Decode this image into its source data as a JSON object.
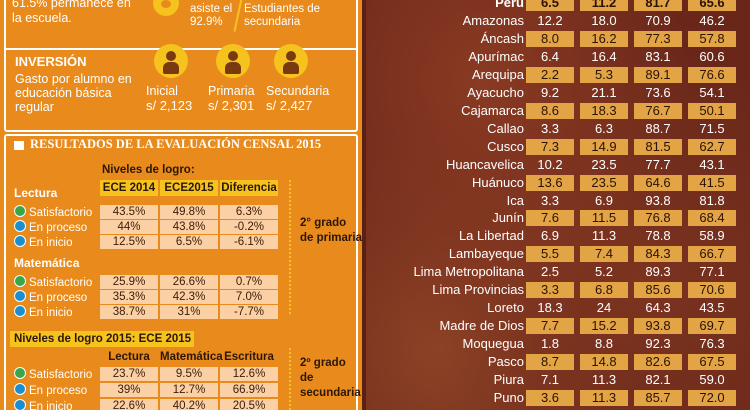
{
  "header": {
    "retention": "61.5% permanece en la escuela.",
    "attendance": "asiste el 92.9%",
    "attendance_group": "Estudiantes de secundaria"
  },
  "investment": {
    "title": "INVERSIÓN",
    "description": "Gasto por alumno en educación básica regular",
    "levels": [
      {
        "label": "Inicial",
        "amount": "s/ 2,123"
      },
      {
        "label": "Primaria",
        "amount": "s/ 2,301"
      },
      {
        "label": "Secundaria",
        "amount": "s/ 2,427"
      }
    ]
  },
  "census": {
    "title": "RESULTADOS DE LA EVALUACIÓN CENSAL 2015",
    "primary": {
      "caption": "Niveles de logro:",
      "columns": [
        "ECE 2014",
        "ECE2015",
        "Diferencia"
      ],
      "grade": "2° grado de primaria",
      "subjects": [
        {
          "name": "Lectura",
          "rows": [
            {
              "level": "Satisfactorio",
              "values": [
                "43.5%",
                "49.8%",
                "6.3%"
              ]
            },
            {
              "level": "En proceso",
              "values": [
                "44%",
                "43.8%",
                "-0.2%"
              ]
            },
            {
              "level": "En inicio",
              "values": [
                "12.5%",
                "6.5%",
                "-6.1%"
              ]
            }
          ]
        },
        {
          "name": "Matemática",
          "rows": [
            {
              "level": "Satisfactorio",
              "values": [
                "25.9%",
                "26.6%",
                "0.7%"
              ]
            },
            {
              "level": "En proceso",
              "values": [
                "35.3%",
                "42.3%",
                "7.0%"
              ]
            },
            {
              "level": "En inicio",
              "values": [
                "38.7%",
                "31%",
                "-7.7%"
              ]
            }
          ]
        }
      ]
    },
    "secondary": {
      "caption": "Niveles de logro 2015:  ECE 2015",
      "columns": [
        "Lectura",
        "Matemática",
        "Escritura"
      ],
      "grade": "2º grado de secundaria",
      "rows": [
        {
          "level": "Satisfactorio",
          "values": [
            "23.7%",
            "9.5%",
            "12.6%"
          ]
        },
        {
          "level": "En proceso",
          "values": [
            "39%",
            "12.7%",
            "66.9%"
          ]
        },
        {
          "level": "En inicio",
          "values": [
            "22.6%",
            "40.2%",
            "20.5%"
          ]
        }
      ]
    }
  },
  "regions": {
    "national": {
      "name": "Perú",
      "values": [
        "6.5",
        "11.2",
        "81.7",
        "65.6"
      ]
    },
    "rows": [
      {
        "name": "Amazonas",
        "values": [
          "12.2",
          "18.0",
          "70.9",
          "46.2"
        ]
      },
      {
        "name": "Áncash",
        "values": [
          "8.0",
          "16.2",
          "77.3",
          "57.8"
        ]
      },
      {
        "name": "Apurímac",
        "values": [
          "6.4",
          "16.4",
          "83.1",
          "60.6"
        ]
      },
      {
        "name": "Arequipa",
        "values": [
          "2.2",
          "5.3",
          "89.1",
          "76.6"
        ]
      },
      {
        "name": "Ayacucho",
        "values": [
          "9.2",
          "21.1",
          "73.6",
          "54.1"
        ]
      },
      {
        "name": "Cajamarca",
        "values": [
          "8.6",
          "18.3",
          "76.7",
          "50.1"
        ]
      },
      {
        "name": "Callao",
        "values": [
          "3.3",
          "6.3",
          "88.7",
          "71.5"
        ]
      },
      {
        "name": "Cusco",
        "values": [
          "7.3",
          "14.9",
          "81.5",
          "62.7"
        ]
      },
      {
        "name": "Huancavelica",
        "values": [
          "10.2",
          "23.5",
          "77.7",
          "43.1"
        ]
      },
      {
        "name": "Huánuco",
        "values": [
          "13.6",
          "23.5",
          "64.6",
          "41.5"
        ]
      },
      {
        "name": "Ica",
        "values": [
          "3.3",
          "6.9",
          "93.8",
          "81.8"
        ]
      },
      {
        "name": "Junín",
        "values": [
          "7.6",
          "11.5",
          "76.8",
          "68.4"
        ]
      },
      {
        "name": "La Libertad",
        "values": [
          "6.9",
          "11.3",
          "78.8",
          "58.9"
        ]
      },
      {
        "name": "Lambayeque",
        "values": [
          "5.5",
          "7.4",
          "84.3",
          "66.7"
        ]
      },
      {
        "name": "Lima Metropolitana",
        "values": [
          "2.5",
          "5.2",
          "89.3",
          "77.1"
        ]
      },
      {
        "name": "Lima Provincias",
        "values": [
          "3.3",
          "6.8",
          "85.6",
          "70.6"
        ]
      },
      {
        "name": "Loreto",
        "values": [
          "18.3",
          "24",
          "64.3",
          "43.5"
        ]
      },
      {
        "name": "Madre de Dios",
        "values": [
          "7.7",
          "15.2",
          "93.8",
          "69.7"
        ]
      },
      {
        "name": "Moquegua",
        "values": [
          "1.8",
          "8.8",
          "92.3",
          "76.3"
        ]
      },
      {
        "name": "Pasco",
        "values": [
          "8.7",
          "14.8",
          "82.6",
          "67.5"
        ]
      },
      {
        "name": "Piura",
        "values": [
          "7.1",
          "11.3",
          "82.1",
          "59.0"
        ]
      },
      {
        "name": "Puno",
        "values": [
          "3.6",
          "11.3",
          "85.7",
          "72.0"
        ]
      }
    ]
  }
}
